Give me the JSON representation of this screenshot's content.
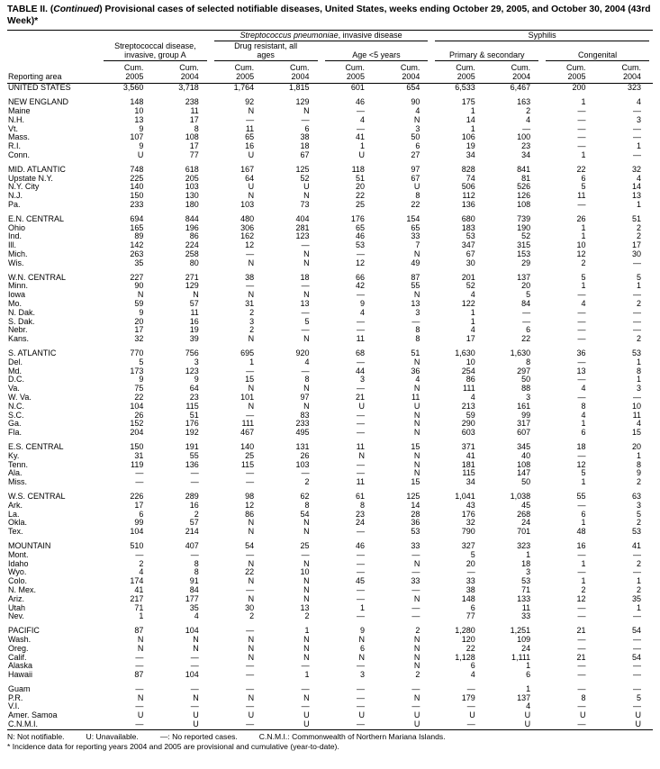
{
  "title": {
    "prefix": "TABLE II. (",
    "continued": "Continued",
    "suffix": ") Provisional cases of selected notifiable diseases, United States, weeks ending October 29, 2005, and October 30, 2004 (43rd Week)*"
  },
  "header": {
    "reporting_area": "Reporting area",
    "strep_a": "Streptococcal disease, invasive, group A",
    "pneumo_italic": "Streptococcus pneumoniae",
    "pneumo_rest": ", invasive disease",
    "drug_resistant": "Drug resistant, all ages",
    "age_under5": "Age <5 years",
    "syphilis": "Syphilis",
    "primary_secondary": "Primary & secondary",
    "congenital": "Congenital",
    "cum": "Cum.",
    "year_pairs": [
      "2005",
      "2004",
      "2005",
      "2004",
      "2005",
      "2004",
      "2005",
      "2004",
      "2005",
      "2004"
    ]
  },
  "rows": [
    {
      "area": "UNITED STATES",
      "values": [
        "3,560",
        "3,718",
        "1,764",
        "1,815",
        "601",
        "654",
        "6,533",
        "6,467",
        "200",
        "323"
      ]
    },
    {
      "area": "NEW ENGLAND",
      "gap": true,
      "values": [
        "148",
        "238",
        "92",
        "129",
        "46",
        "90",
        "175",
        "163",
        "1",
        "4"
      ]
    },
    {
      "area": "Maine",
      "values": [
        "10",
        "11",
        "N",
        "N",
        "—",
        "4",
        "1",
        "2",
        "—",
        "—"
      ]
    },
    {
      "area": "N.H.",
      "values": [
        "13",
        "17",
        "—",
        "—",
        "4",
        "N",
        "14",
        "4",
        "—",
        "3"
      ]
    },
    {
      "area": "Vt.",
      "values": [
        "9",
        "8",
        "11",
        "6",
        "—",
        "3",
        "1",
        "—",
        "—",
        "—"
      ]
    },
    {
      "area": "Mass.",
      "values": [
        "107",
        "108",
        "65",
        "38",
        "41",
        "50",
        "106",
        "100",
        "—",
        "—"
      ]
    },
    {
      "area": "R.I.",
      "values": [
        "9",
        "17",
        "16",
        "18",
        "1",
        "6",
        "19",
        "23",
        "—",
        "1"
      ]
    },
    {
      "area": "Conn.",
      "values": [
        "U",
        "77",
        "U",
        "67",
        "U",
        "27",
        "34",
        "34",
        "1",
        "—"
      ]
    },
    {
      "area": "MID. ATLANTIC",
      "gap": true,
      "values": [
        "748",
        "618",
        "167",
        "125",
        "118",
        "97",
        "828",
        "841",
        "22",
        "32"
      ]
    },
    {
      "area": "Upstate N.Y.",
      "values": [
        "225",
        "205",
        "64",
        "52",
        "51",
        "67",
        "74",
        "81",
        "6",
        "4"
      ]
    },
    {
      "area": "N.Y. City",
      "values": [
        "140",
        "103",
        "U",
        "U",
        "20",
        "U",
        "506",
        "526",
        "5",
        "14"
      ]
    },
    {
      "area": "N.J.",
      "values": [
        "150",
        "130",
        "N",
        "N",
        "22",
        "8",
        "112",
        "126",
        "11",
        "13"
      ]
    },
    {
      "area": "Pa.",
      "values": [
        "233",
        "180",
        "103",
        "73",
        "25",
        "22",
        "136",
        "108",
        "—",
        "1"
      ]
    },
    {
      "area": "E.N. CENTRAL",
      "gap": true,
      "values": [
        "694",
        "844",
        "480",
        "404",
        "176",
        "154",
        "680",
        "739",
        "26",
        "51"
      ]
    },
    {
      "area": "Ohio",
      "values": [
        "165",
        "196",
        "306",
        "281",
        "65",
        "65",
        "183",
        "190",
        "1",
        "2"
      ]
    },
    {
      "area": "Ind.",
      "values": [
        "89",
        "86",
        "162",
        "123",
        "46",
        "33",
        "53",
        "52",
        "1",
        "2"
      ]
    },
    {
      "area": "Ill.",
      "values": [
        "142",
        "224",
        "12",
        "—",
        "53",
        "7",
        "347",
        "315",
        "10",
        "17"
      ]
    },
    {
      "area": "Mich.",
      "values": [
        "263",
        "258",
        "—",
        "N",
        "—",
        "N",
        "67",
        "153",
        "12",
        "30"
      ]
    },
    {
      "area": "Wis.",
      "values": [
        "35",
        "80",
        "N",
        "N",
        "12",
        "49",
        "30",
        "29",
        "2",
        "—"
      ]
    },
    {
      "area": "W.N. CENTRAL",
      "gap": true,
      "values": [
        "227",
        "271",
        "38",
        "18",
        "66",
        "87",
        "201",
        "137",
        "5",
        "5"
      ]
    },
    {
      "area": "Minn.",
      "values": [
        "90",
        "129",
        "—",
        "—",
        "42",
        "55",
        "52",
        "20",
        "1",
        "1"
      ]
    },
    {
      "area": "Iowa",
      "values": [
        "N",
        "N",
        "N",
        "N",
        "—",
        "N",
        "4",
        "5",
        "—",
        "—"
      ]
    },
    {
      "area": "Mo.",
      "values": [
        "59",
        "57",
        "31",
        "13",
        "9",
        "13",
        "122",
        "84",
        "4",
        "2"
      ]
    },
    {
      "area": "N. Dak.",
      "values": [
        "9",
        "11",
        "2",
        "—",
        "4",
        "3",
        "1",
        "—",
        "—",
        "—"
      ]
    },
    {
      "area": "S. Dak.",
      "values": [
        "20",
        "16",
        "3",
        "5",
        "—",
        "—",
        "1",
        "—",
        "—",
        "—"
      ]
    },
    {
      "area": "Nebr.",
      "values": [
        "17",
        "19",
        "2",
        "—",
        "—",
        "8",
        "4",
        "6",
        "—",
        "—"
      ]
    },
    {
      "area": "Kans.",
      "values": [
        "32",
        "39",
        "N",
        "N",
        "11",
        "8",
        "17",
        "22",
        "—",
        "2"
      ]
    },
    {
      "area": "S. ATLANTIC",
      "gap": true,
      "values": [
        "770",
        "756",
        "695",
        "920",
        "68",
        "51",
        "1,630",
        "1,630",
        "36",
        "53"
      ]
    },
    {
      "area": "Del.",
      "values": [
        "5",
        "3",
        "1",
        "4",
        "—",
        "N",
        "10",
        "8",
        "—",
        "1"
      ]
    },
    {
      "area": "Md.",
      "values": [
        "173",
        "123",
        "—",
        "—",
        "44",
        "36",
        "254",
        "297",
        "13",
        "8"
      ]
    },
    {
      "area": "D.C.",
      "values": [
        "9",
        "9",
        "15",
        "8",
        "3",
        "4",
        "86",
        "50",
        "—",
        "1"
      ]
    },
    {
      "area": "Va.",
      "values": [
        "75",
        "64",
        "N",
        "N",
        "—",
        "N",
        "111",
        "88",
        "4",
        "3"
      ]
    },
    {
      "area": "W. Va.",
      "values": [
        "22",
        "23",
        "101",
        "97",
        "21",
        "11",
        "4",
        "3",
        "—",
        "—"
      ]
    },
    {
      "area": "N.C.",
      "values": [
        "104",
        "115",
        "N",
        "N",
        "U",
        "U",
        "213",
        "161",
        "8",
        "10"
      ]
    },
    {
      "area": "S.C.",
      "values": [
        "26",
        "51",
        "—",
        "83",
        "—",
        "N",
        "59",
        "99",
        "4",
        "11"
      ]
    },
    {
      "area": "Ga.",
      "values": [
        "152",
        "176",
        "111",
        "233",
        "—",
        "N",
        "290",
        "317",
        "1",
        "4"
      ]
    },
    {
      "area": "Fla.",
      "values": [
        "204",
        "192",
        "467",
        "495",
        "—",
        "N",
        "603",
        "607",
        "6",
        "15"
      ]
    },
    {
      "area": "E.S. CENTRAL",
      "gap": true,
      "values": [
        "150",
        "191",
        "140",
        "131",
        "11",
        "15",
        "371",
        "345",
        "18",
        "20"
      ]
    },
    {
      "area": "Ky.",
      "values": [
        "31",
        "55",
        "25",
        "26",
        "N",
        "N",
        "41",
        "40",
        "—",
        "1"
      ]
    },
    {
      "area": "Tenn.",
      "values": [
        "119",
        "136",
        "115",
        "103",
        "—",
        "N",
        "181",
        "108",
        "12",
        "8"
      ]
    },
    {
      "area": "Ala.",
      "values": [
        "—",
        "—",
        "—",
        "—",
        "—",
        "N",
        "115",
        "147",
        "5",
        "9"
      ]
    },
    {
      "area": "Miss.",
      "values": [
        "—",
        "—",
        "—",
        "2",
        "11",
        "15",
        "34",
        "50",
        "1",
        "2"
      ]
    },
    {
      "area": "W.S. CENTRAL",
      "gap": true,
      "values": [
        "226",
        "289",
        "98",
        "62",
        "61",
        "125",
        "1,041",
        "1,038",
        "55",
        "63"
      ]
    },
    {
      "area": "Ark.",
      "values": [
        "17",
        "16",
        "12",
        "8",
        "8",
        "14",
        "43",
        "45",
        "—",
        "3"
      ]
    },
    {
      "area": "La.",
      "values": [
        "6",
        "2",
        "86",
        "54",
        "23",
        "28",
        "176",
        "268",
        "6",
        "5"
      ]
    },
    {
      "area": "Okla.",
      "values": [
        "99",
        "57",
        "N",
        "N",
        "24",
        "36",
        "32",
        "24",
        "1",
        "2"
      ]
    },
    {
      "area": "Tex.",
      "values": [
        "104",
        "214",
        "N",
        "N",
        "—",
        "53",
        "790",
        "701",
        "48",
        "53"
      ]
    },
    {
      "area": "MOUNTAIN",
      "gap": true,
      "values": [
        "510",
        "407",
        "54",
        "25",
        "46",
        "33",
        "327",
        "323",
        "16",
        "41"
      ]
    },
    {
      "area": "Mont.",
      "values": [
        "—",
        "—",
        "—",
        "—",
        "—",
        "—",
        "5",
        "1",
        "—",
        "—"
      ]
    },
    {
      "area": "Idaho",
      "values": [
        "2",
        "8",
        "N",
        "N",
        "—",
        "N",
        "20",
        "18",
        "1",
        "2"
      ]
    },
    {
      "area": "Wyo.",
      "values": [
        "4",
        "8",
        "22",
        "10",
        "—",
        "—",
        "—",
        "3",
        "—",
        "—"
      ]
    },
    {
      "area": "Colo.",
      "values": [
        "174",
        "91",
        "N",
        "N",
        "45",
        "33",
        "33",
        "53",
        "1",
        "1"
      ]
    },
    {
      "area": "N. Mex.",
      "values": [
        "41",
        "84",
        "—",
        "N",
        "—",
        "—",
        "38",
        "71",
        "2",
        "2"
      ]
    },
    {
      "area": "Ariz.",
      "values": [
        "217",
        "177",
        "N",
        "N",
        "—",
        "N",
        "148",
        "133",
        "12",
        "35"
      ]
    },
    {
      "area": "Utah",
      "values": [
        "71",
        "35",
        "30",
        "13",
        "1",
        "—",
        "6",
        "11",
        "—",
        "1"
      ]
    },
    {
      "area": "Nev.",
      "values": [
        "1",
        "4",
        "2",
        "2",
        "—",
        "—",
        "77",
        "33",
        "—",
        "—"
      ]
    },
    {
      "area": "PACIFIC",
      "gap": true,
      "values": [
        "87",
        "104",
        "—",
        "1",
        "9",
        "2",
        "1,280",
        "1,251",
        "21",
        "54"
      ]
    },
    {
      "area": "Wash.",
      "values": [
        "N",
        "N",
        "N",
        "N",
        "N",
        "N",
        "120",
        "109",
        "—",
        "—"
      ]
    },
    {
      "area": "Oreg.",
      "values": [
        "N",
        "N",
        "N",
        "N",
        "6",
        "N",
        "22",
        "24",
        "—",
        "—"
      ]
    },
    {
      "area": "Calif.",
      "values": [
        "—",
        "—",
        "N",
        "N",
        "N",
        "N",
        "1,128",
        "1,111",
        "21",
        "54"
      ]
    },
    {
      "area": "Alaska",
      "values": [
        "—",
        "—",
        "—",
        "—",
        "—",
        "N",
        "6",
        "1",
        "—",
        "—"
      ]
    },
    {
      "area": "Hawaii",
      "values": [
        "87",
        "104",
        "—",
        "1",
        "3",
        "2",
        "4",
        "6",
        "—",
        "—"
      ]
    },
    {
      "area": "Guam",
      "gap": true,
      "values": [
        "—",
        "—",
        "—",
        "—",
        "—",
        "—",
        "—",
        "1",
        "—",
        "—"
      ]
    },
    {
      "area": "P.R.",
      "values": [
        "N",
        "N",
        "N",
        "N",
        "—",
        "N",
        "179",
        "137",
        "8",
        "5"
      ]
    },
    {
      "area": "V.I.",
      "values": [
        "—",
        "—",
        "—",
        "—",
        "—",
        "—",
        "—",
        "4",
        "—",
        "—"
      ]
    },
    {
      "area": "Amer. Samoa",
      "values": [
        "U",
        "U",
        "U",
        "U",
        "U",
        "U",
        "U",
        "U",
        "U",
        "U"
      ]
    },
    {
      "area": "C.N.M.I.",
      "values": [
        "—",
        "U",
        "—",
        "U",
        "—",
        "U",
        "—",
        "U",
        "—",
        "U"
      ]
    }
  ],
  "footnotes": {
    "line1": [
      "N: Not notifiable.",
      "U: Unavailable.",
      "—: No reported cases.",
      "C.N.M.I.: Commonwealth of Northern Mariana Islands."
    ],
    "line2": "* Incidence data for reporting years 2004 and 2005 are provisional and cumulative (year-to-date)."
  }
}
